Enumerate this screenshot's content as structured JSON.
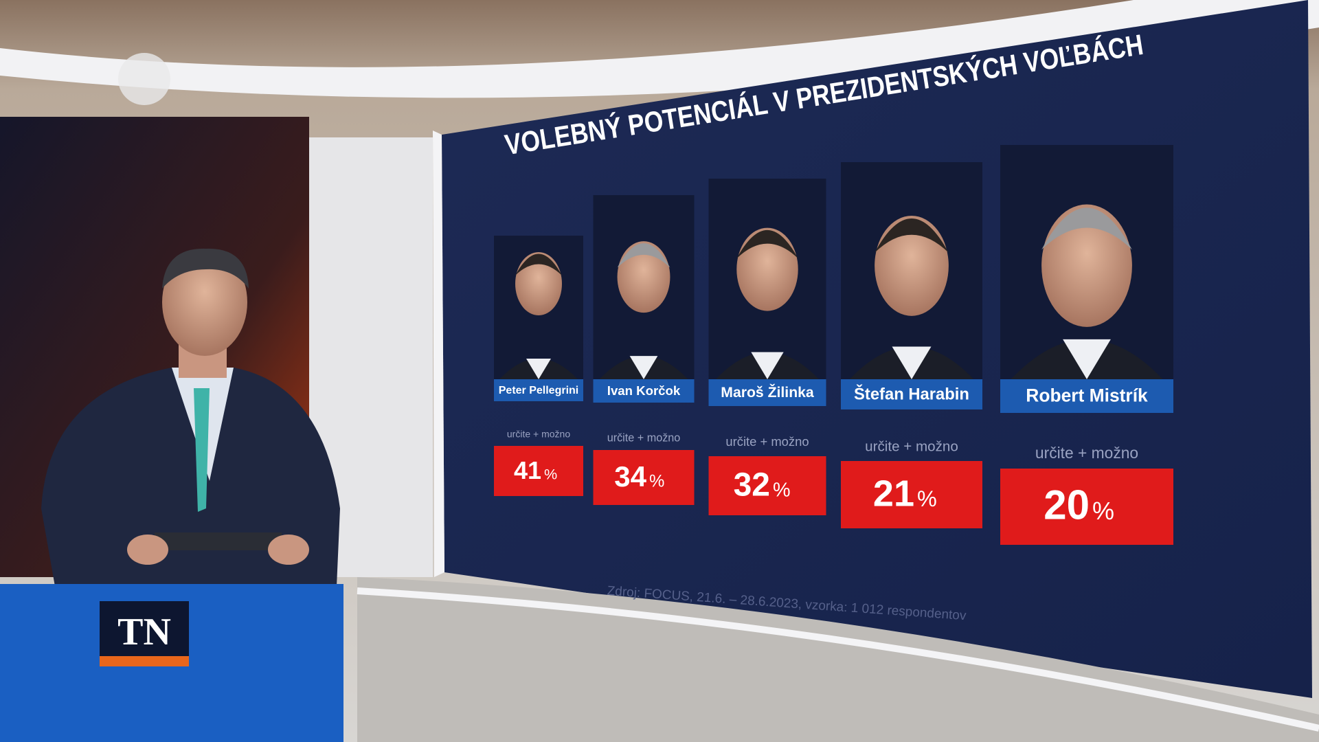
{
  "title": "VOLEBNÝ POTENCIÁL V PREZIDENTSKÝCH VOĽBÁCH",
  "candidates": [
    {
      "name": "Peter Pellegrini",
      "label": "určite + možno",
      "value": "41",
      "unit": "%"
    },
    {
      "name": "Ivan Korčok",
      "label": "určite + možno",
      "value": "34",
      "unit": "%"
    },
    {
      "name": "Maroš Žilinka",
      "label": "určite + možno",
      "value": "32",
      "unit": "%"
    },
    {
      "name": "Štefan Harabin",
      "label": "určite + možno",
      "value": "21",
      "unit": "%"
    },
    {
      "name": "Robert Mistrík",
      "label": "určite + možno",
      "value": "20",
      "unit": "%"
    }
  ],
  "source": "Zdroj: FOCUS, 21.6. – 28.6.2023, vzorka: 1 012 respondentov",
  "logo": "TN"
}
